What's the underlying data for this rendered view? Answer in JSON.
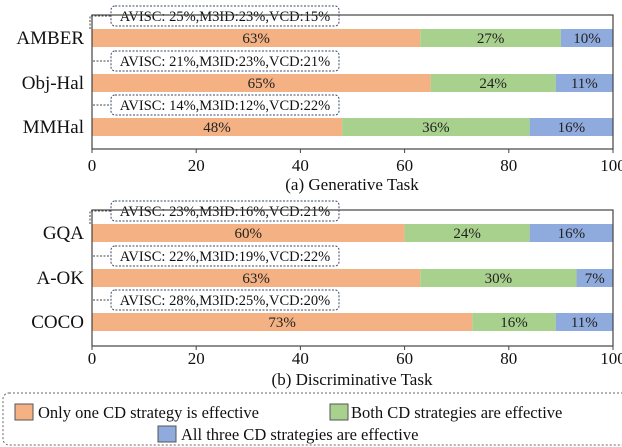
{
  "colors": {
    "only_one": "#F4B183",
    "both": "#A9D18E",
    "all_three": "#8FAADC"
  },
  "legend": {
    "only_one": "Only one CD strategy is effective",
    "both": "Both CD strategies are effective",
    "all_three": "All three CD strategies are effective",
    "placement": "bottom"
  },
  "chart_data": [
    {
      "type": "bar",
      "orientation": "horizontal",
      "stacked": true,
      "title": "(a) Generative Task",
      "xlim": [
        0,
        100
      ],
      "xticks": [
        0,
        20,
        40,
        60,
        80,
        100
      ],
      "categories": [
        "AMBER",
        "Obj-Hal",
        "MMHal"
      ],
      "series": [
        {
          "name": "Only one CD strategy is effective",
          "values": [
            63,
            65,
            48
          ]
        },
        {
          "name": "Both CD strategies are effective",
          "values": [
            27,
            24,
            36
          ]
        },
        {
          "name": "All three CD strategies are effective",
          "values": [
            10,
            11,
            16
          ]
        }
      ],
      "annotations": [
        "AVISC: 25%,M3ID:23%,VCD:15%",
        "AVISC: 21%,M3ID:23%,VCD:21%",
        "AVISC: 14%,M3ID:12%,VCD:22%"
      ]
    },
    {
      "type": "bar",
      "orientation": "horizontal",
      "stacked": true,
      "title": "(b) Discriminative Task",
      "xlim": [
        0,
        100
      ],
      "xticks": [
        0,
        20,
        40,
        60,
        80,
        100
      ],
      "categories": [
        "GQA",
        "A-OK",
        "COCO"
      ],
      "series": [
        {
          "name": "Only one CD strategy is effective",
          "values": [
            60,
            63,
            73
          ]
        },
        {
          "name": "Both CD strategies are effective",
          "values": [
            24,
            30,
            16
          ]
        },
        {
          "name": "All three CD strategies are effective",
          "values": [
            16,
            7,
            11
          ]
        }
      ],
      "annotations": [
        "AVISC: 23%,M3ID:16%,VCD:21%",
        "AVISC: 22%,M3ID:19%,VCD:22%",
        "AVISC: 28%,M3ID:25%,VCD:20%"
      ]
    }
  ]
}
